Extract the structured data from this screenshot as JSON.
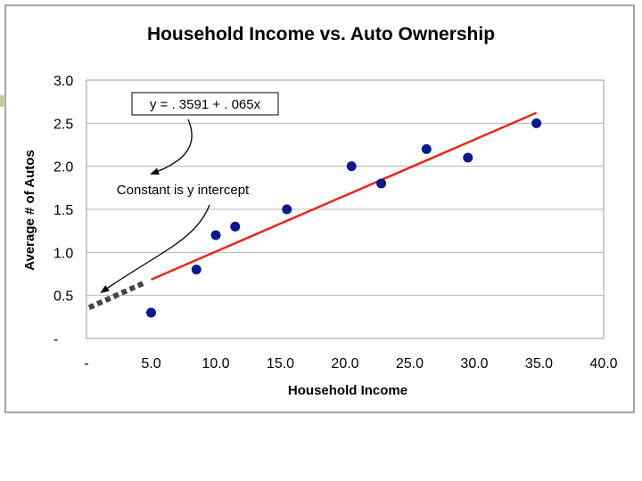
{
  "chart_data": {
    "type": "scatter",
    "title": "Household Income vs. Auto Ownership",
    "xlabel": "Household Income",
    "ylabel": "Average # of Autos",
    "xlim": [
      0,
      40
    ],
    "ylim": [
      0,
      3
    ],
    "x_ticks": [
      {
        "value": 0,
        "label": "-"
      },
      {
        "value": 5,
        "label": "5.0"
      },
      {
        "value": 10,
        "label": "10.0"
      },
      {
        "value": 15,
        "label": "15.0"
      },
      {
        "value": 20,
        "label": "20.0"
      },
      {
        "value": 25,
        "label": "25.0"
      },
      {
        "value": 30,
        "label": "30.0"
      },
      {
        "value": 35,
        "label": "35.0"
      },
      {
        "value": 40,
        "label": "40.0"
      }
    ],
    "y_ticks": [
      {
        "value": 0,
        "label": "-"
      },
      {
        "value": 0.5,
        "label": "0.5"
      },
      {
        "value": 1,
        "label": "1.0"
      },
      {
        "value": 1.5,
        "label": "1.5"
      },
      {
        "value": 2,
        "label": "2.0"
      },
      {
        "value": 2.5,
        "label": "2.5"
      },
      {
        "value": 3,
        "label": "3.0"
      }
    ],
    "gridlines": "horizontal",
    "points": [
      {
        "x": 5.0,
        "y": 0.3
      },
      {
        "x": 8.5,
        "y": 0.8
      },
      {
        "x": 10.0,
        "y": 1.2
      },
      {
        "x": 11.5,
        "y": 1.3
      },
      {
        "x": 15.5,
        "y": 1.5
      },
      {
        "x": 20.5,
        "y": 2.0
      },
      {
        "x": 22.8,
        "y": 1.8
      },
      {
        "x": 26.3,
        "y": 2.2
      },
      {
        "x": 29.5,
        "y": 2.1
      },
      {
        "x": 34.8,
        "y": 2.5
      }
    ],
    "trendline": {
      "intercept": 0.3591,
      "slope": 0.065,
      "x_start": 5.0,
      "x_end": 34.8,
      "extension_x_start": 0,
      "color": "#e8261c",
      "extension_color": "#444444"
    },
    "point_color": "#0a1a8a",
    "annotations": {
      "equation": "y = . 3591 + . 065x",
      "note": "Constant is y intercept"
    }
  }
}
